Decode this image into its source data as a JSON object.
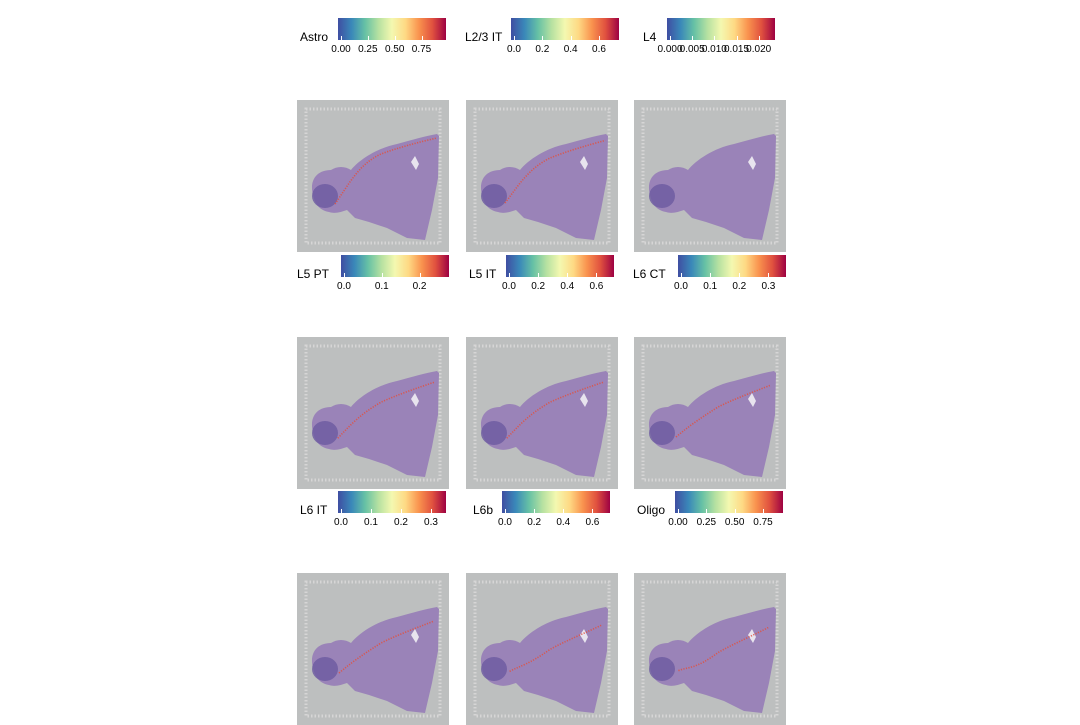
{
  "chart_data": [
    {
      "type": "heatmap",
      "title": "Astro",
      "legend_ticks": [
        "0.00",
        "0.25",
        "0.50",
        "0.75"
      ],
      "range": [
        0,
        0.95
      ],
      "colormap": "Spectral_r",
      "highlight": "outer-cortex-boundary"
    },
    {
      "type": "heatmap",
      "title": "L2/3 IT",
      "legend_ticks": [
        "0.0",
        "0.2",
        "0.4",
        "0.6"
      ],
      "range": [
        0,
        0.72
      ],
      "colormap": "Spectral_r",
      "highlight": "upper-cortex"
    },
    {
      "type": "heatmap",
      "title": "L4",
      "legend_ticks": [
        "0.000",
        "0.005",
        "0.010",
        "0.015",
        "0.020"
      ],
      "range": [
        0,
        0.023
      ],
      "colormap": "Spectral_r",
      "highlight": "none"
    },
    {
      "type": "heatmap",
      "title": "L5 PT",
      "legend_ticks": [
        "0.0",
        "0.1",
        "0.2"
      ],
      "range": [
        0,
        0.27
      ],
      "colormap": "Spectral_r",
      "highlight": "mid-cortex"
    },
    {
      "type": "heatmap",
      "title": "L5 IT",
      "legend_ticks": [
        "0.0",
        "0.2",
        "0.4",
        "0.6"
      ],
      "range": [
        0,
        0.7
      ],
      "colormap": "Spectral_r",
      "highlight": "mid-cortex"
    },
    {
      "type": "heatmap",
      "title": "L6 CT",
      "legend_ticks": [
        "0.0",
        "0.1",
        "0.2",
        "0.3"
      ],
      "range": [
        0,
        0.35
      ],
      "colormap": "Spectral_r",
      "highlight": "deep-cortex"
    },
    {
      "type": "heatmap",
      "title": "L6 IT",
      "legend_ticks": [
        "0.0",
        "0.1",
        "0.2",
        "0.3"
      ],
      "range": [
        0,
        0.34
      ],
      "colormap": "Spectral_r",
      "highlight": "deep-cortex"
    },
    {
      "type": "heatmap",
      "title": "L6b",
      "legend_ticks": [
        "0.0",
        "0.2",
        "0.4",
        "0.6"
      ],
      "range": [
        0,
        0.7
      ],
      "colormap": "Spectral_r",
      "highlight": "cortex-bottom"
    },
    {
      "type": "heatmap",
      "title": "Oligo",
      "legend_ticks": [
        "0.00",
        "0.25",
        "0.50",
        "0.75"
      ],
      "range": [
        0,
        0.9
      ],
      "colormap": "Spectral_r",
      "highlight": "white-matter"
    }
  ],
  "colors": {
    "background": "#bdbfbf",
    "tissue": "#9a83b8",
    "tissue_dark": "#6c5aa0",
    "spot_frame": "#d6d6d6",
    "hot": "#e0513f"
  }
}
